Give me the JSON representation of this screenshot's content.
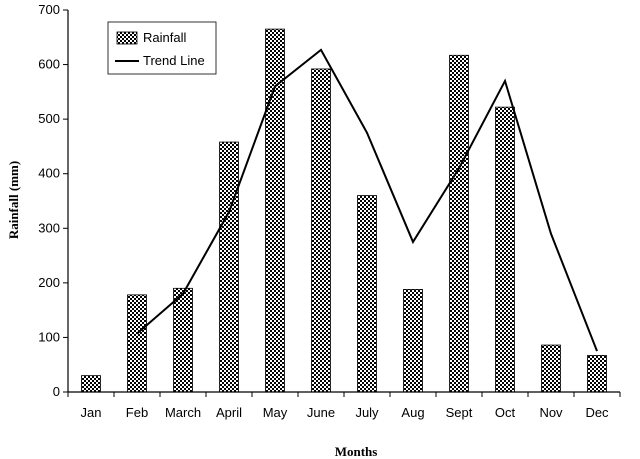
{
  "chart_data": {
    "type": "bar",
    "categories": [
      "Jan",
      "Feb",
      "March",
      "April",
      "May",
      "June",
      "July",
      "Aug",
      "Sept",
      "Oct",
      "Nov",
      "Dec"
    ],
    "series": [
      {
        "name": "Rainfall",
        "type": "bar",
        "values": [
          30,
          178,
          190,
          458,
          665,
          592,
          360,
          188,
          617,
          522,
          86,
          67
        ]
      },
      {
        "name": "Trend Line",
        "type": "line",
        "values": [
          null,
          107,
          180,
          330,
          560,
          627,
          475,
          275,
          410,
          570,
          290,
          75
        ]
      }
    ],
    "xlabel": "Months",
    "ylabel": "Rainfall (mm)",
    "ylim": [
      0,
      700
    ],
    "yticks": [
      "0",
      "100",
      "200",
      "300",
      "400",
      "500",
      "600",
      "700"
    ],
    "grid": false,
    "legend": "top-left",
    "colors": {
      "bar_fill": "#ffffff",
      "bar_pattern": "#000000",
      "line": "#000000"
    }
  }
}
